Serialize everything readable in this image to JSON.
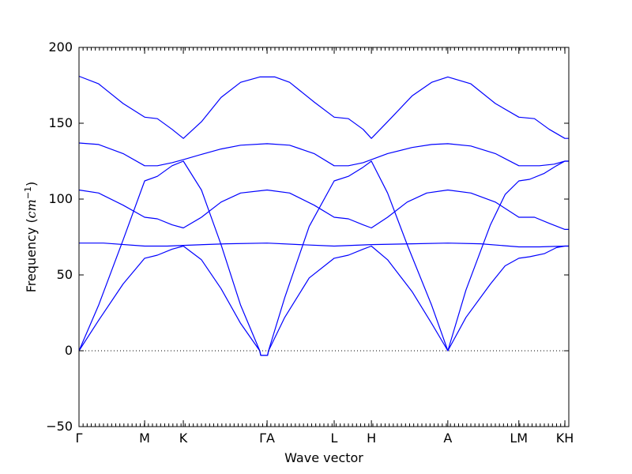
{
  "chart_data": {
    "type": "line",
    "title": "",
    "xlabel": "Wave vector",
    "ylabel_text": "Frequency (",
    "ylabel_math_base": "cm",
    "ylabel_math_sup": "−1",
    "ylabel_close": ")",
    "ylim": [
      -50,
      200
    ],
    "yticks": [
      -50,
      0,
      50,
      100,
      150,
      200
    ],
    "xlim": [
      0,
      1
    ],
    "xticks": [
      {
        "x": 0.0,
        "label": "Γ"
      },
      {
        "x": 0.134,
        "label": "M"
      },
      {
        "x": 0.213,
        "label": "K"
      },
      {
        "x": 0.384,
        "label": "ΓA"
      },
      {
        "x": 0.521,
        "label": "L"
      },
      {
        "x": 0.597,
        "label": "H"
      },
      {
        "x": 0.753,
        "label": "A"
      },
      {
        "x": 0.898,
        "label": "LM"
      },
      {
        "x": 0.992,
        "label": "KH"
      }
    ],
    "zero_line": true,
    "line_color": "#0000ff",
    "series": [
      {
        "points": [
          [
            0,
            0
          ],
          [
            0.04,
            20
          ],
          [
            0.09,
            44
          ],
          [
            0.134,
            61
          ],
          [
            0.16,
            63
          ],
          [
            0.19,
            67
          ],
          [
            0.213,
            69
          ],
          [
            0.25,
            60
          ],
          [
            0.29,
            41
          ],
          [
            0.33,
            18
          ],
          [
            0.369,
            0
          ],
          [
            0.371,
            -3
          ],
          [
            0.385,
            -3
          ],
          [
            0.387,
            0
          ],
          [
            0.42,
            22
          ],
          [
            0.47,
            48
          ],
          [
            0.521,
            61
          ],
          [
            0.55,
            63
          ],
          [
            0.58,
            67
          ],
          [
            0.597,
            69
          ],
          [
            0.63,
            60
          ],
          [
            0.68,
            39
          ],
          [
            0.72,
            18
          ],
          [
            0.753,
            0
          ],
          [
            0.79,
            22
          ],
          [
            0.84,
            44
          ],
          [
            0.87,
            56
          ],
          [
            0.898,
            61
          ],
          [
            0.92,
            62
          ],
          [
            0.95,
            64
          ],
          [
            0.975,
            68
          ],
          [
            0.992,
            69
          ],
          [
            1.0,
            69
          ]
        ]
      },
      {
        "points": [
          [
            0,
            0
          ],
          [
            0.04,
            30
          ],
          [
            0.09,
            73
          ],
          [
            0.134,
            112
          ],
          [
            0.16,
            115
          ],
          [
            0.19,
            122
          ],
          [
            0.213,
            125
          ],
          [
            0.25,
            106
          ],
          [
            0.29,
            70
          ],
          [
            0.33,
            30
          ],
          [
            0.369,
            0
          ],
          [
            0.371,
            -3
          ],
          [
            0.385,
            -3
          ],
          [
            0.387,
            0
          ],
          [
            0.42,
            35
          ],
          [
            0.47,
            82
          ],
          [
            0.521,
            112
          ],
          [
            0.55,
            115
          ],
          [
            0.58,
            121
          ],
          [
            0.597,
            125
          ],
          [
            0.63,
            104
          ],
          [
            0.67,
            70
          ],
          [
            0.72,
            30
          ],
          [
            0.753,
            0
          ],
          [
            0.79,
            40
          ],
          [
            0.84,
            83
          ],
          [
            0.87,
            103
          ],
          [
            0.898,
            112
          ],
          [
            0.92,
            113
          ],
          [
            0.95,
            117
          ],
          [
            0.975,
            122
          ],
          [
            0.992,
            125
          ],
          [
            1.0,
            125
          ]
        ]
      },
      {
        "points": [
          [
            0,
            71
          ],
          [
            0.05,
            71
          ],
          [
            0.134,
            69
          ],
          [
            0.18,
            69
          ],
          [
            0.213,
            69.5
          ],
          [
            0.3,
            70.5
          ],
          [
            0.384,
            71
          ],
          [
            0.45,
            70
          ],
          [
            0.521,
            69
          ],
          [
            0.597,
            70
          ],
          [
            0.68,
            70.5
          ],
          [
            0.753,
            71
          ],
          [
            0.82,
            70.5
          ],
          [
            0.898,
            68.5
          ],
          [
            0.94,
            68.5
          ],
          [
            0.992,
            69
          ],
          [
            1.0,
            69
          ]
        ]
      },
      {
        "points": [
          [
            0,
            106
          ],
          [
            0.04,
            104
          ],
          [
            0.09,
            96
          ],
          [
            0.134,
            88
          ],
          [
            0.16,
            87
          ],
          [
            0.19,
            83
          ],
          [
            0.213,
            81
          ],
          [
            0.25,
            88
          ],
          [
            0.29,
            98
          ],
          [
            0.33,
            104
          ],
          [
            0.384,
            106
          ],
          [
            0.43,
            104
          ],
          [
            0.48,
            96
          ],
          [
            0.521,
            88
          ],
          [
            0.55,
            87
          ],
          [
            0.58,
            83
          ],
          [
            0.597,
            81
          ],
          [
            0.63,
            88
          ],
          [
            0.67,
            98
          ],
          [
            0.71,
            104
          ],
          [
            0.753,
            106
          ],
          [
            0.8,
            104
          ],
          [
            0.85,
            98
          ],
          [
            0.898,
            88
          ],
          [
            0.93,
            88
          ],
          [
            0.96,
            84
          ],
          [
            0.992,
            80
          ],
          [
            1.0,
            80
          ]
        ]
      },
      {
        "points": [
          [
            0,
            137
          ],
          [
            0.04,
            136
          ],
          [
            0.09,
            130
          ],
          [
            0.134,
            122
          ],
          [
            0.16,
            122
          ],
          [
            0.19,
            124
          ],
          [
            0.213,
            126
          ],
          [
            0.25,
            129.5
          ],
          [
            0.29,
            133
          ],
          [
            0.33,
            135.5
          ],
          [
            0.384,
            136.5
          ],
          [
            0.43,
            135.5
          ],
          [
            0.48,
            130
          ],
          [
            0.521,
            122
          ],
          [
            0.55,
            122
          ],
          [
            0.58,
            124
          ],
          [
            0.597,
            126
          ],
          [
            0.63,
            130
          ],
          [
            0.68,
            134
          ],
          [
            0.72,
            136
          ],
          [
            0.753,
            136.5
          ],
          [
            0.8,
            135
          ],
          [
            0.85,
            130
          ],
          [
            0.898,
            122
          ],
          [
            0.94,
            122
          ],
          [
            0.97,
            123
          ],
          [
            0.992,
            125
          ],
          [
            1.0,
            125
          ]
        ]
      },
      {
        "points": [
          [
            0,
            181
          ],
          [
            0.04,
            176
          ],
          [
            0.09,
            163
          ],
          [
            0.134,
            154
          ],
          [
            0.16,
            153
          ],
          [
            0.19,
            146
          ],
          [
            0.213,
            140
          ],
          [
            0.25,
            151
          ],
          [
            0.29,
            167
          ],
          [
            0.33,
            177
          ],
          [
            0.369,
            180.5
          ],
          [
            0.384,
            180.5
          ],
          [
            0.4,
            180.5
          ],
          [
            0.43,
            177
          ],
          [
            0.48,
            164
          ],
          [
            0.521,
            154
          ],
          [
            0.55,
            153
          ],
          [
            0.58,
            146
          ],
          [
            0.597,
            140
          ],
          [
            0.63,
            151
          ],
          [
            0.68,
            168
          ],
          [
            0.72,
            177
          ],
          [
            0.753,
            180.5
          ],
          [
            0.8,
            176
          ],
          [
            0.85,
            163
          ],
          [
            0.898,
            154
          ],
          [
            0.93,
            153
          ],
          [
            0.96,
            146
          ],
          [
            0.992,
            140
          ],
          [
            1.0,
            140
          ]
        ]
      }
    ]
  }
}
